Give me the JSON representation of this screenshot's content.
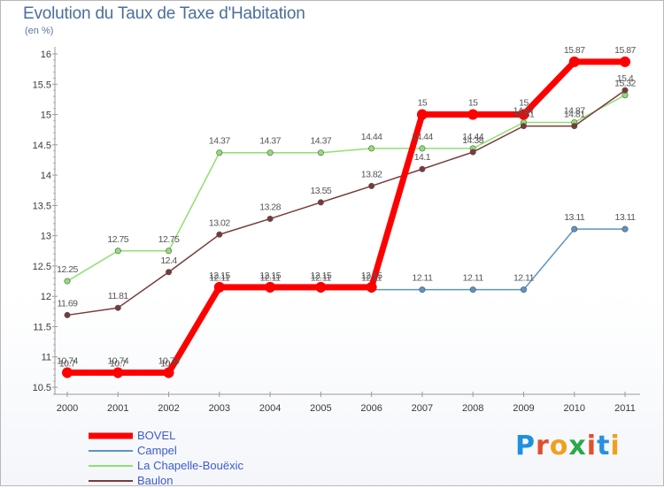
{
  "header": {
    "title": "Evolution du Taux de Taxe d'Habitation",
    "unit": "(en %)"
  },
  "brand": {
    "letters": [
      "P",
      "r",
      "o",
      "x",
      "i",
      "t",
      "i"
    ],
    "colors": [
      "#1f8fe0",
      "#e0502a",
      "#f0a020",
      "#2aa84a",
      "#e0502a",
      "#2a8fe0",
      "#f0a020"
    ]
  },
  "chart_data": {
    "type": "line",
    "title": "Evolution du Taux de Taxe d'Habitation",
    "ylabel": "(en %)",
    "x": [
      "2000",
      "2001",
      "2002",
      "2003",
      "2004",
      "2005",
      "2006",
      "2007",
      "2008",
      "2009",
      "2010",
      "2011"
    ],
    "ylim": [
      10.5,
      16
    ],
    "yticks": [
      "10.5",
      "11",
      "11.5",
      "12",
      "12.5",
      "13",
      "13.5",
      "14",
      "14.5",
      "15",
      "15.5",
      "16"
    ],
    "grid": false,
    "legend_placement": "bottom-left",
    "series": [
      {
        "name": "BOVEL",
        "color": "#ff0000",
        "values": [
          10.74,
          10.74,
          10.74,
          12.15,
          12.15,
          12.15,
          12.15,
          15,
          15,
          15,
          15.87,
          15.87
        ],
        "labels": [
          "10.74",
          "10.74",
          "10.74",
          "12.15",
          "12.15",
          "12.15",
          "12.15",
          "15",
          "15",
          "15",
          "15.87",
          "15.87"
        ]
      },
      {
        "name": "Campel",
        "color": "#5b94c8",
        "values": [
          10.7,
          10.7,
          10.7,
          12.11,
          12.11,
          12.11,
          12.11,
          12.11,
          12.11,
          12.11,
          13.11,
          13.11
        ],
        "labels": [
          "10.7",
          "10.7",
          "10.7",
          "12.11",
          "12.11",
          "12.11",
          "12.11",
          "12.11",
          "12.11",
          "12.11",
          "13.11",
          "13.11"
        ]
      },
      {
        "name": "La Chapelle-Bouëxic",
        "color": "#8fe070",
        "values": [
          12.25,
          12.75,
          12.75,
          14.37,
          14.37,
          14.37,
          14.44,
          14.44,
          14.44,
          14.87,
          14.87,
          15.32
        ],
        "labels": [
          "12.25",
          "12.75",
          "12.75",
          "14.37",
          "14.37",
          "14.37",
          "14.44",
          "14.44",
          "14.44",
          "14.87",
          "14.87",
          "15.32"
        ]
      },
      {
        "name": "Baulon",
        "color": "#7a3a3a",
        "values": [
          11.69,
          11.81,
          12.4,
          13.02,
          13.28,
          13.55,
          13.82,
          14.1,
          14.38,
          14.81,
          14.81,
          15.4
        ],
        "labels": [
          "11.69",
          "11.81",
          "12.4",
          "13.02",
          "13.28",
          "13.55",
          "13.82",
          "14.1",
          "14.38",
          "14.81",
          "14.81",
          "15.4"
        ]
      }
    ]
  }
}
